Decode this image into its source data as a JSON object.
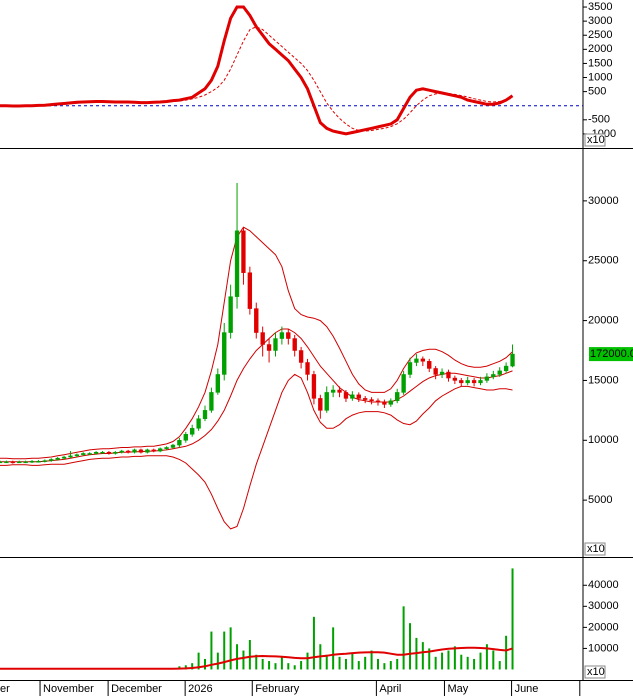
{
  "chart_data": [
    {
      "type": "line",
      "scale_label": "x10",
      "x": [
        0,
        2,
        4,
        6,
        8,
        10,
        12,
        14,
        16,
        18,
        20,
        22,
        24,
        26,
        28,
        30,
        32,
        34,
        36,
        38,
        40,
        42,
        44,
        46,
        48,
        50,
        52,
        54,
        56,
        58,
        60,
        62,
        64,
        66,
        68,
        70,
        72,
        74,
        76,
        78,
        80,
        82,
        84,
        86,
        88,
        90,
        92,
        94,
        96,
        98,
        100,
        102,
        104,
        106,
        108,
        110,
        112,
        114,
        116,
        118,
        120,
        122,
        124,
        126,
        128,
        130,
        132,
        134,
        136,
        138,
        140,
        142,
        144,
        146,
        148,
        150,
        152,
        154,
        156,
        158,
        160
      ],
      "xlim": [
        0,
        182
      ],
      "ylim": [
        -1500,
        3750
      ],
      "yticks": [
        3500,
        3000,
        2500,
        2000,
        1500,
        1000,
        500,
        -500,
        -1000
      ],
      "series": [
        {
          "color": "#e00000",
          "values": [
            0,
            0,
            -10,
            -10,
            0,
            0,
            10,
            20,
            40,
            60,
            80,
            100,
            120,
            130,
            140,
            150,
            150,
            140,
            130,
            130,
            130,
            120,
            110,
            110,
            120,
            130,
            150,
            180,
            200,
            250,
            300,
            450,
            600,
            900,
            1400,
            2300,
            3100,
            3500,
            3500,
            3200,
            2800,
            2500,
            2200,
            2000,
            1800,
            1600,
            1300,
            1000,
            600,
            0,
            -600,
            -800,
            -900,
            -950,
            -1000,
            -950,
            -900,
            -850,
            -800,
            -750,
            -700,
            -650,
            -500,
            -100,
            300,
            550,
            600,
            550,
            500,
            450,
            400,
            350,
            300,
            200,
            150,
            100,
            50,
            50,
            100,
            200,
            350
          ]
        },
        {
          "color": "#e00000",
          "dashed": true,
          "values": [
            0,
            0,
            0,
            -5,
            -5,
            0,
            5,
            10,
            20,
            35,
            50,
            70,
            90,
            105,
            120,
            130,
            140,
            140,
            140,
            135,
            135,
            130,
            125,
            120,
            120,
            125,
            135,
            150,
            170,
            200,
            240,
            300,
            380,
            500,
            650,
            900,
            1300,
            1800,
            2300,
            2700,
            2800,
            2700,
            2500,
            2300,
            2100,
            1900,
            1700,
            1500,
            1250,
            900,
            500,
            100,
            -200,
            -450,
            -650,
            -800,
            -880,
            -900,
            -880,
            -840,
            -800,
            -740,
            -640,
            -480,
            -250,
            0,
            200,
            350,
            420,
            440,
            430,
            400,
            360,
            310,
            250,
            200,
            150,
            130,
            150,
            200,
            270
          ]
        }
      ]
    },
    {
      "type": "candlestick",
      "scale_label": "x10",
      "last_label": "172000.0",
      "up_color": "#00a000",
      "down_color": "#e00000",
      "band_color": "#d00000",
      "x": [
        0,
        2,
        4,
        6,
        8,
        10,
        12,
        14,
        16,
        18,
        20,
        22,
        24,
        26,
        28,
        30,
        32,
        34,
        36,
        38,
        40,
        42,
        44,
        46,
        48,
        50,
        52,
        54,
        56,
        58,
        60,
        62,
        64,
        66,
        68,
        70,
        72,
        74,
        76,
        78,
        80,
        82,
        84,
        86,
        88,
        90,
        92,
        94,
        96,
        98,
        100,
        102,
        104,
        106,
        108,
        110,
        112,
        114,
        116,
        118,
        120,
        122,
        124,
        126,
        128,
        130,
        132,
        134,
        136,
        138,
        140,
        142,
        144,
        146,
        148,
        150,
        152,
        154,
        156,
        158,
        160
      ],
      "xlim": [
        0,
        182
      ],
      "ylim": [
        250,
        34250
      ],
      "yticks": [
        30000,
        25000,
        20000,
        15000,
        10000,
        5000
      ],
      "open": [
        8200,
        8200,
        8200,
        8150,
        8200,
        8200,
        8250,
        8250,
        8300,
        8400,
        8500,
        8600,
        8700,
        8800,
        8900,
        8900,
        9000,
        9000,
        8900,
        9000,
        9100,
        9000,
        9200,
        9000,
        9200,
        9100,
        9300,
        9400,
        9600,
        10000,
        10500,
        11000,
        11800,
        12500,
        14000,
        15500,
        19000,
        22000,
        27500,
        24000,
        21000,
        19000,
        18000,
        17500,
        18500,
        19000,
        18500,
        17500,
        16500,
        15500,
        13500,
        12500,
        14000,
        14200,
        14000,
        13500,
        13800,
        13500,
        13400,
        13300,
        13200,
        13000,
        13300,
        14000,
        15500,
        16500,
        16800,
        16600,
        16000,
        15500,
        15700,
        15200,
        15000,
        14800,
        15000,
        14800,
        15000,
        15300,
        15500,
        15800,
        16200
      ],
      "high": [
        8300,
        8300,
        8300,
        8300,
        8300,
        8350,
        8350,
        8400,
        8500,
        8600,
        8700,
        9100,
        8900,
        9000,
        9000,
        9100,
        9100,
        9100,
        9100,
        9200,
        9200,
        9300,
        9300,
        9300,
        9300,
        9400,
        9500,
        9700,
        10200,
        10700,
        11300,
        12100,
        12900,
        14400,
        16000,
        19800,
        23000,
        31500,
        27800,
        24500,
        21500,
        19500,
        18500,
        19000,
        19500,
        19300,
        18800,
        17800,
        16800,
        15800,
        13800,
        14500,
        14600,
        14500,
        14200,
        14100,
        14000,
        13700,
        13600,
        13500,
        13400,
        13500,
        14300,
        15800,
        16900,
        17200,
        17000,
        16800,
        16200,
        16000,
        15900,
        15400,
        15200,
        15300,
        15200,
        15300,
        15600,
        15800,
        16100,
        16500,
        18000
      ],
      "low": [
        8100,
        8100,
        8050,
        8100,
        8100,
        8100,
        8150,
        8150,
        8200,
        8300,
        8400,
        8500,
        8600,
        8700,
        8800,
        8800,
        8900,
        8800,
        8800,
        8900,
        8900,
        8900,
        8900,
        8900,
        9000,
        9000,
        9200,
        9300,
        9400,
        9800,
        10300,
        10800,
        11600,
        12300,
        13800,
        15000,
        18500,
        21000,
        23000,
        20500,
        18500,
        17000,
        16500,
        17000,
        18000,
        18000,
        17000,
        16000,
        15000,
        13000,
        11800,
        12300,
        13600,
        13600,
        13200,
        13300,
        13200,
        13100,
        13000,
        12900,
        12700,
        12800,
        13100,
        13800,
        15200,
        16200,
        16200,
        15700,
        15100,
        15200,
        14900,
        14700,
        14500,
        14600,
        14500,
        14600,
        14800,
        15100,
        15300,
        15600,
        16100
      ],
      "close": [
        8200,
        8200,
        8150,
        8200,
        8200,
        8250,
        8250,
        8300,
        8400,
        8500,
        8600,
        8700,
        8800,
        8900,
        8900,
        9000,
        9000,
        8900,
        9000,
        9100,
        9000,
        9200,
        9000,
        9200,
        9100,
        9300,
        9400,
        9600,
        10000,
        10500,
        11000,
        11800,
        12500,
        14000,
        15500,
        19000,
        22000,
        27500,
        24000,
        21000,
        19000,
        18000,
        17500,
        18500,
        19000,
        18500,
        17500,
        16500,
        15500,
        13500,
        12500,
        14000,
        14200,
        14000,
        13500,
        13800,
        13500,
        13400,
        13300,
        13200,
        13000,
        13300,
        14000,
        15500,
        16500,
        16800,
        16600,
        16000,
        15500,
        15700,
        15200,
        15000,
        14800,
        15000,
        14800,
        15000,
        15300,
        15500,
        15800,
        16200,
        17200
      ],
      "bands": {
        "upper": [
          8500,
          8500,
          8450,
          8450,
          8450,
          8500,
          8500,
          8550,
          8600,
          8700,
          8800,
          8900,
          9000,
          9100,
          9200,
          9250,
          9300,
          9300,
          9350,
          9400,
          9400,
          9450,
          9450,
          9500,
          9500,
          9600,
          9700,
          9900,
          10300,
          11000,
          11800,
          12800,
          14000,
          15800,
          18000,
          21500,
          25000,
          27000,
          27800,
          27500,
          27000,
          26500,
          26000,
          25500,
          24500,
          22500,
          21000,
          20500,
          20300,
          20200,
          20000,
          19500,
          18700,
          17700,
          16600,
          15500,
          14700,
          14200,
          14000,
          14000,
          14000,
          14300,
          15000,
          16000,
          16800,
          17300,
          17500,
          17600,
          17600,
          17400,
          17100,
          16700,
          16400,
          16200,
          16100,
          16100,
          16200,
          16400,
          16600,
          16900,
          17400
        ],
        "middle": [
          8200,
          8200,
          8200,
          8200,
          8200,
          8200,
          8200,
          8250,
          8300,
          8350,
          8400,
          8500,
          8600,
          8700,
          8800,
          8850,
          8900,
          8900,
          8950,
          9000,
          9000,
          9050,
          9050,
          9100,
          9100,
          9150,
          9200,
          9300,
          9400,
          9500,
          9700,
          10000,
          10400,
          10900,
          11600,
          12500,
          13700,
          15000,
          16000,
          16800,
          17500,
          18000,
          18500,
          19000,
          19300,
          19300,
          19000,
          18500,
          17800,
          17000,
          16200,
          15600,
          15000,
          14400,
          14000,
          13600,
          13400,
          13300,
          13200,
          13200,
          13200,
          13200,
          13400,
          13700,
          14100,
          14500,
          14900,
          15200,
          15400,
          15500,
          15600,
          15600,
          15500,
          15400,
          15300,
          15200,
          15200,
          15300,
          15400,
          15600,
          15800
        ],
        "lower": [
          7900,
          7900,
          7950,
          7950,
          7950,
          7900,
          7900,
          7950,
          8000,
          8000,
          8000,
          8100,
          8200,
          8300,
          8400,
          8450,
          8500,
          8500,
          8550,
          8600,
          8600,
          8650,
          8650,
          8700,
          8700,
          8700,
          8700,
          8600,
          8400,
          8100,
          7600,
          7100,
          6500,
          5500,
          4300,
          3200,
          2600,
          2800,
          4300,
          6200,
          8000,
          9500,
          11000,
          12500,
          14000,
          15000,
          15500,
          15200,
          14000,
          12500,
          11500,
          11000,
          11000,
          11300,
          11800,
          12100,
          12300,
          12400,
          12400,
          12400,
          12300,
          12100,
          11700,
          11400,
          11300,
          11600,
          12200,
          12700,
          13300,
          13700,
          14000,
          14300,
          14500,
          14500,
          14400,
          14300,
          14200,
          14200,
          14300,
          14300,
          14200
        ]
      }
    },
    {
      "type": "bar",
      "scale_label": "x10",
      "color": "#00a000",
      "ma_color": "#e00000",
      "x": [
        0,
        2,
        4,
        6,
        8,
        10,
        12,
        14,
        16,
        18,
        20,
        22,
        24,
        26,
        28,
        30,
        32,
        34,
        36,
        38,
        40,
        42,
        44,
        46,
        48,
        50,
        52,
        54,
        56,
        58,
        60,
        62,
        64,
        66,
        68,
        70,
        72,
        74,
        76,
        78,
        80,
        82,
        84,
        86,
        88,
        90,
        92,
        94,
        96,
        98,
        100,
        102,
        104,
        106,
        108,
        110,
        112,
        114,
        116,
        118,
        120,
        122,
        124,
        126,
        128,
        130,
        132,
        134,
        136,
        138,
        140,
        142,
        144,
        146,
        148,
        150,
        152,
        154,
        156,
        158,
        160
      ],
      "xlim": [
        0,
        182
      ],
      "ylim": [
        -5000,
        52000
      ],
      "yticks": [
        40000,
        30000,
        20000,
        10000
      ],
      "xticks": [
        {
          "value": -1,
          "label": "er"
        },
        {
          "value": 12.5,
          "label": "November"
        },
        {
          "value": 33.75,
          "label": "December"
        },
        {
          "value": 57.8,
          "label": "2026"
        },
        {
          "value": 78.75,
          "label": "February"
        },
        {
          "value": 117.5,
          "label": "April"
        },
        {
          "value": 138.75,
          "label": "May"
        },
        {
          "value": 159.7,
          "label": "June"
        },
        {
          "value": 181,
          "label": ""
        }
      ],
      "values": [
        300,
        300,
        300,
        300,
        300,
        300,
        300,
        300,
        300,
        300,
        300,
        300,
        300,
        300,
        300,
        300,
        300,
        300,
        300,
        300,
        300,
        300,
        300,
        300,
        300,
        300,
        300,
        300,
        1500,
        2000,
        3000,
        8000,
        5000,
        18000,
        8000,
        18000,
        20000,
        12000,
        9000,
        14000,
        7000,
        5000,
        4000,
        3000,
        6000,
        3000,
        2000,
        4000,
        8000,
        25000,
        12000,
        7000,
        20000,
        6000,
        5000,
        8000,
        4000,
        6000,
        9000,
        5000,
        3000,
        4000,
        5000,
        30000,
        22000,
        15000,
        13000,
        10000,
        6000,
        8000,
        9000,
        11000,
        7000,
        6000,
        5000,
        8000,
        12000,
        9000,
        4000,
        16000,
        48000
      ],
      "ma": [
        300,
        300,
        300,
        300,
        300,
        300,
        300,
        300,
        300,
        300,
        300,
        300,
        300,
        300,
        300,
        300,
        300,
        300,
        300,
        300,
        300,
        300,
        300,
        300,
        300,
        300,
        300,
        300,
        400,
        500,
        700,
        1100,
        1500,
        2200,
        2800,
        3500,
        4300,
        5000,
        5500,
        6000,
        6300,
        6400,
        6300,
        6200,
        6000,
        5800,
        5500,
        5300,
        5300,
        5800,
        6200,
        6500,
        7000,
        7300,
        7500,
        7800,
        8000,
        8100,
        8200,
        8200,
        8000,
        7500,
        7000,
        7000,
        7500,
        7800,
        8200,
        8500,
        9000,
        9500,
        9800,
        10000,
        10200,
        10300,
        10300,
        10200,
        10000,
        9700,
        9300,
        9000,
        10000
      ]
    }
  ]
}
